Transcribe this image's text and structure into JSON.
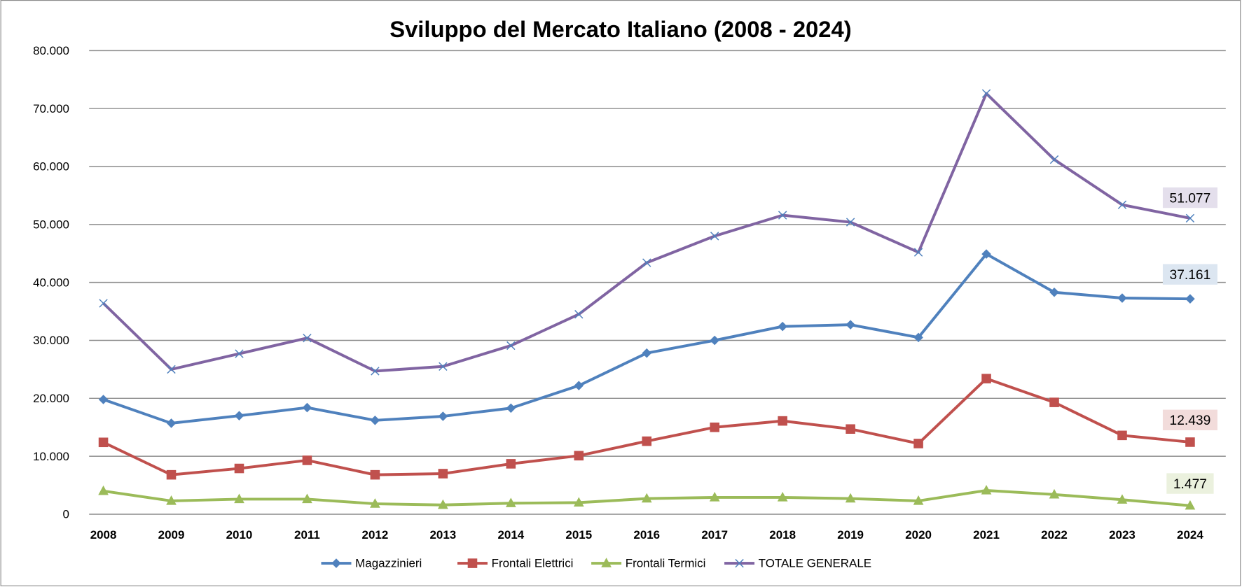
{
  "chart_data": {
    "type": "line",
    "title": "Sviluppo del Mercato Italiano (2008 - 2024)",
    "xlabel": "",
    "ylabel": "",
    "ylim": [
      0,
      80000
    ],
    "yticks": [
      0,
      10000,
      20000,
      30000,
      40000,
      50000,
      60000,
      70000,
      80000
    ],
    "ytick_labels": [
      "0",
      "10.000",
      "20.000",
      "30.000",
      "40.000",
      "50.000",
      "60.000",
      "70.000",
      "80.000"
    ],
    "grid": true,
    "legend_position": "bottom",
    "categories": [
      "2008",
      "2009",
      "2010",
      "2011",
      "2012",
      "2013",
      "2014",
      "2015",
      "2016",
      "2017",
      "2018",
      "2019",
      "2020",
      "2021",
      "2022",
      "2023",
      "2024"
    ],
    "series": [
      {
        "name": "Magazzinieri",
        "color": "#4f81bd",
        "marker": "diamond",
        "label_bg": "#dce6f1",
        "values": [
          19800,
          15700,
          17000,
          18400,
          16200,
          16900,
          18300,
          22200,
          27800,
          30000,
          32400,
          32700,
          30500,
          44900,
          38300,
          37300,
          37161
        ],
        "last_label": "37.161"
      },
      {
        "name": "Frontali Elettrici",
        "color": "#c0504d",
        "marker": "square",
        "label_bg": "#f2dcdb",
        "values": [
          12400,
          6800,
          7900,
          9300,
          6800,
          7000,
          8700,
          10100,
          12600,
          15000,
          16100,
          14700,
          12200,
          23400,
          19300,
          13600,
          12439
        ],
        "last_label": "12.439"
      },
      {
        "name": "Frontali Termici",
        "color": "#9bbb59",
        "marker": "triangle",
        "label_bg": "#ebf1de",
        "values": [
          4000,
          2300,
          2600,
          2600,
          1800,
          1600,
          1900,
          2000,
          2700,
          2900,
          2900,
          2700,
          2300,
          4100,
          3400,
          2500,
          1477
        ],
        "last_label": "1.477"
      },
      {
        "name": "TOTALE GENERALE",
        "color": "#8064a2",
        "marker": "x",
        "label_bg": "#e4dfec",
        "values": [
          36400,
          25000,
          27700,
          30400,
          24700,
          25500,
          29100,
          34500,
          43400,
          48000,
          51600,
          50400,
          45200,
          72600,
          61200,
          53400,
          51077
        ],
        "last_label": "51.077"
      }
    ]
  }
}
